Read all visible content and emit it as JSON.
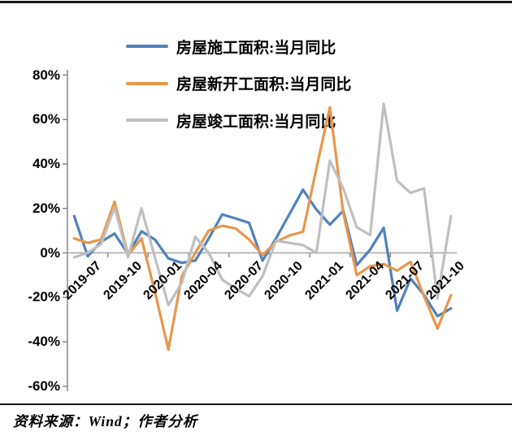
{
  "legend": {
    "items": [
      {
        "label": "房屋施工面积:当月同比",
        "color": "#4F81BD"
      },
      {
        "label": "房屋新开工面积:当月同比",
        "color": "#E8964B"
      },
      {
        "label": "房屋竣工面积:当月同比",
        "color": "#BFBFBF"
      }
    ]
  },
  "chart_data": {
    "type": "line",
    "x": [
      "2019-06",
      "2019-07",
      "2019-08",
      "2019-09",
      "2019-10",
      "2019-11",
      "2019-12",
      "2020-01",
      "2020-02",
      "2020-03",
      "2020-04",
      "2020-05",
      "2020-06",
      "2020-07",
      "2020-08",
      "2020-09",
      "2020-10",
      "2020-11",
      "2020-12",
      "2021-01",
      "2021-02",
      "2021-03",
      "2021-04",
      "2021-05",
      "2021-06",
      "2021-07",
      "2021-08",
      "2021-09",
      "2021-10"
    ],
    "x_tick_labels": [
      "2019-07",
      "2019-10",
      "2020-01",
      "2020-04",
      "2020-07",
      "2020-10",
      "2021-01",
      "2021-04",
      "2021-07",
      "2021-10"
    ],
    "y_tick_labels": [
      "80%",
      "60%",
      "40%",
      "20%",
      "0%",
      "-20%",
      "-40%",
      "-60%"
    ],
    "y_ticks": [
      80,
      60,
      40,
      20,
      0,
      -20,
      -40,
      -60
    ],
    "ylim": [
      -60,
      80
    ],
    "grid": false,
    "legend_position": "top-left",
    "series": [
      {
        "name": "房屋施工面积:当月同比",
        "color": "#4F81BD",
        "values": [
          16.5,
          -1.5,
          5,
          8.7,
          -0.5,
          9.7,
          6,
          -2.5,
          -4.5,
          -3.5,
          6.5,
          17.3,
          15.5,
          13.5,
          -3.5,
          6.5,
          17.5,
          28.4,
          19.5,
          12.7,
          19,
          -5.5,
          1.5,
          11.3,
          -26,
          -11.5,
          -19,
          -28.5,
          -25
        ]
      },
      {
        "name": "房屋新开工面积:当月同比",
        "color": "#E8964B",
        "values": [
          6.5,
          4.5,
          6,
          23,
          -1,
          6.5,
          -17.5,
          -43.5,
          -10.5,
          0,
          10,
          12.2,
          11,
          6,
          -1,
          5,
          7.8,
          9.5,
          38,
          65.5,
          18,
          -10,
          -6,
          -5,
          -8,
          -4,
          -19.5,
          -34,
          -19
        ]
      },
      {
        "name": "房屋竣工面积:当月同比",
        "color": "#BFBFBF",
        "values": [
          -2,
          0,
          4,
          20.5,
          -2,
          20,
          -2,
          -23.5,
          -13.5,
          7.2,
          0,
          -12,
          -16,
          -19.5,
          -10.5,
          5.5,
          4.5,
          3.5,
          0,
          41.5,
          29,
          11.5,
          8,
          67,
          32.5,
          27,
          29,
          -20.5,
          16.5
        ]
      }
    ]
  },
  "source_note": "资料来源：Wind；作者分析"
}
